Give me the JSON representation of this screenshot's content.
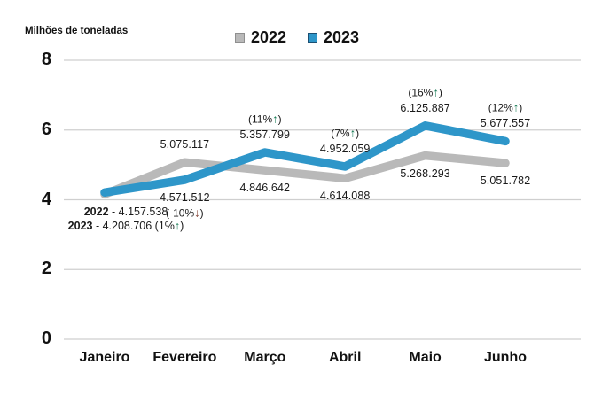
{
  "chart_data": {
    "type": "line",
    "title": "",
    "ylabel": "Milhões de toneladas",
    "xlabel": "",
    "categories": [
      "Janeiro",
      "Fevereiro",
      "Março",
      "Abril",
      "Maio",
      "Junho"
    ],
    "yticks": [
      0,
      2,
      4,
      6,
      8
    ],
    "ylim": [
      0,
      8
    ],
    "grid": true,
    "grid_color": "#cfcfcf",
    "legend_position": "top-center",
    "arrow_colors": {
      "up": "#177a55",
      "down": "#7e3a2c"
    },
    "series": [
      {
        "name": "2022",
        "color": "#b9b9b9",
        "swatch_border": "#8f8f8f",
        "values": [
          4.157538,
          5.075117,
          4.846642,
          4.614088,
          5.268293,
          5.051782
        ],
        "value_labels": [
          "4.157.538",
          "5.075.117",
          "4.846.642",
          "4.614.088",
          "5.268.293",
          "5.051.782"
        ],
        "label_placement": [
          null,
          "above",
          "below",
          "below",
          "below",
          "below"
        ]
      },
      {
        "name": "2023",
        "color": "#2e96c9",
        "swatch_border": "#1b4f72",
        "values": [
          4.208706,
          4.571512,
          5.357799,
          4.952059,
          6.125887,
          5.677557
        ],
        "value_labels": [
          "4.208.706",
          "4.571.512",
          "5.357.799",
          "4.952.059",
          "6.125.887",
          "5.677.557"
        ],
        "label_placement": [
          null,
          "below",
          "above",
          "above",
          "above",
          "above"
        ],
        "pct_labels": [
          null,
          {
            "pre": "(-10%",
            "arrow": "↓",
            "post": ")",
            "dir": "down"
          },
          {
            "pre": "(11%",
            "arrow": "↑",
            "post": ")",
            "dir": "up"
          },
          {
            "pre": "(7%",
            "arrow": "↑",
            "post": ")",
            "dir": "up"
          },
          {
            "pre": "(16%",
            "arrow": "↑",
            "post": ")",
            "dir": "up"
          },
          {
            "pre": "(12%",
            "arrow": "↑",
            "post": ")",
            "dir": "up"
          }
        ]
      }
    ],
    "annotation_janeiro": {
      "lines": [
        {
          "year": "2022",
          "rest": " - 4.157.538"
        },
        {
          "year": "2023",
          "rest": " - 4.208.706 (1%",
          "arrow": "↑",
          "post": ")",
          "dir": "up"
        }
      ]
    }
  }
}
